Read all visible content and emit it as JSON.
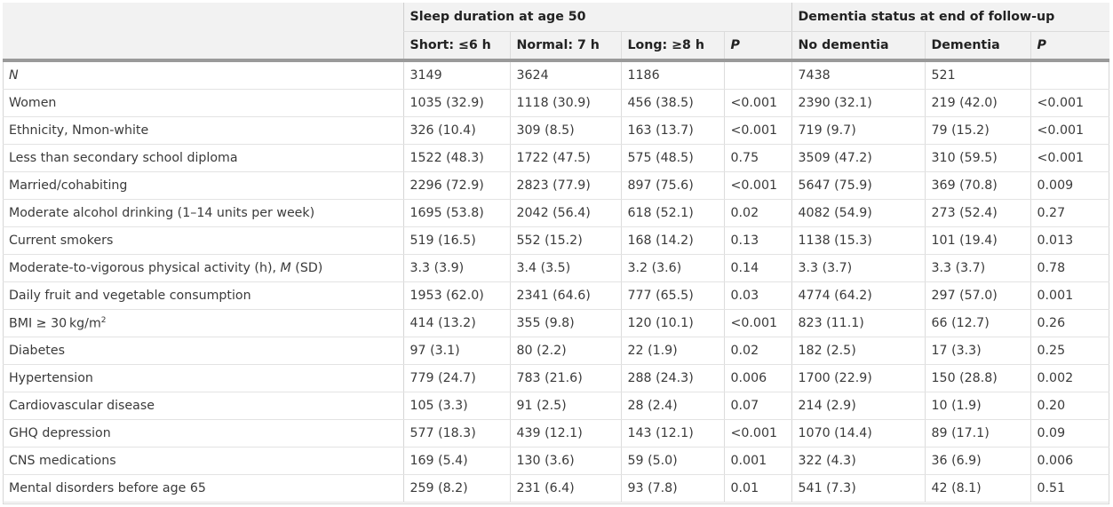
{
  "header": {
    "group1": "Sleep duration at age 50",
    "group2": "Dementia status at end of follow-up",
    "columns": [
      "Short: ≤6 h",
      "Normal: 7 h",
      "Long: ≥8 h",
      "P",
      "No dementia",
      "Dementia",
      "P"
    ]
  },
  "rows": [
    {
      "label": "N",
      "values": [
        "3149",
        "3624",
        "1186",
        "",
        "7438",
        "521",
        ""
      ]
    },
    {
      "label": "Women",
      "values": [
        "1035 (32.9)",
        "1118 (30.9)",
        "456 (38.5)",
        "<0.001",
        "2390 (32.1)",
        "219 (42.0)",
        "<0.001"
      ]
    },
    {
      "label": "Ethnicity, Nmon-white",
      "values": [
        "326 (10.4)",
        "309 (8.5)",
        "163 (13.7)",
        "<0.001",
        "719 (9.7)",
        "79 (15.2)",
        "<0.001"
      ]
    },
    {
      "label": "Less than secondary school diploma",
      "values": [
        "1522 (48.3)",
        "1722 (47.5)",
        "575 (48.5)",
        "0.75",
        "3509 (47.2)",
        "310 (59.5)",
        "<0.001"
      ]
    },
    {
      "label": "Married/cohabiting",
      "values": [
        "2296 (72.9)",
        "2823 (77.9)",
        "897 (75.6)",
        "<0.001",
        "5647 (75.9)",
        "369 (70.8)",
        "0.009"
      ]
    },
    {
      "label": "Moderate alcohol drinking (1–14 units per week)",
      "values": [
        "1695 (53.8)",
        "2042 (56.4)",
        "618 (52.1)",
        "0.02",
        "4082 (54.9)",
        "273 (52.4)",
        "0.27"
      ]
    },
    {
      "label": "Current smokers",
      "values": [
        "519 (16.5)",
        "552 (15.2)",
        "168 (14.2)",
        "0.13",
        "1138 (15.3)",
        "101 (19.4)",
        "0.013"
      ]
    },
    {
      "label_pre": "Moderate-to-vigorous physical activity (h), ",
      "label_em": "M",
      "label_post": " (SD)",
      "values": [
        "3.3 (3.9)",
        "3.4 (3.5)",
        "3.2 (3.6)",
        "0.14",
        "3.3 (3.7)",
        "3.3 (3.7)",
        "0.78"
      ]
    },
    {
      "label": "Daily fruit and vegetable consumption",
      "values": [
        "1953 (62.0)",
        "2341 (64.6)",
        "777 (65.5)",
        "0.03",
        "4774 (64.2)",
        "297 (57.0)",
        "0.001"
      ]
    },
    {
      "label_pre": "BMI ≥ 30 kg/m",
      "label_sup": "2",
      "values": [
        "414 (13.2)",
        "355 (9.8)",
        "120 (10.1)",
        "<0.001",
        "823 (11.1)",
        "66 (12.7)",
        "0.26"
      ]
    },
    {
      "label": "Diabetes",
      "values": [
        "97 (3.1)",
        "80 (2.2)",
        "22 (1.9)",
        "0.02",
        "182 (2.5)",
        "17 (3.3)",
        "0.25"
      ]
    },
    {
      "label": "Hypertension",
      "values": [
        "779 (24.7)",
        "783 (21.6)",
        "288 (24.3)",
        "0.006",
        "1700 (22.9)",
        "150 (28.8)",
        "0.002"
      ]
    },
    {
      "label": "Cardiovascular disease",
      "values": [
        "105 (3.3)",
        "91 (2.5)",
        "28 (2.4)",
        "0.07",
        "214 (2.9)",
        "10 (1.9)",
        "0.20"
      ]
    },
    {
      "label": "GHQ depression",
      "values": [
        "577 (18.3)",
        "439 (12.1)",
        "143 (12.1)",
        "<0.001",
        "1070 (14.4)",
        "89 (17.1)",
        "0.09"
      ]
    },
    {
      "label": "CNS medications",
      "values": [
        "169 (5.4)",
        "130 (3.6)",
        "59 (5.0)",
        "0.001",
        "322 (4.3)",
        "36 (6.9)",
        "0.006"
      ]
    },
    {
      "label": "Mental disorders before age 65",
      "values": [
        "259 (8.2)",
        "231 (6.4)",
        "93 (7.8)",
        "0.01",
        "541 (7.3)",
        "42 (8.1)",
        "0.51"
      ]
    }
  ]
}
